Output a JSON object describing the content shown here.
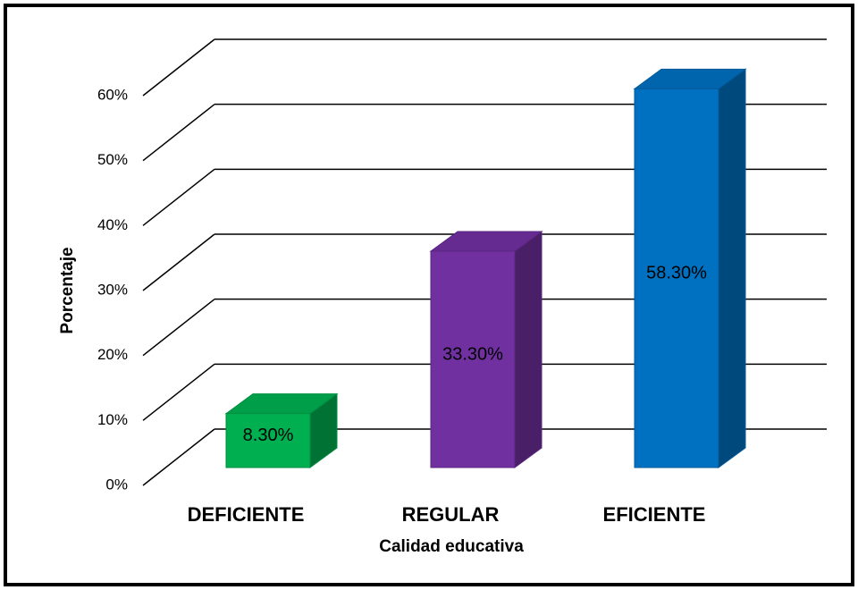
{
  "chart_data": {
    "type": "bar3d",
    "x_label": "Calidad educativa",
    "y_label": "Porcentaje",
    "categories": [
      "DEFICIENTE",
      "REGULAR",
      "EFICIENTE"
    ],
    "values": [
      8.3,
      33.3,
      58.3
    ],
    "value_labels": [
      "8.30%",
      "33.30%",
      "58.30%"
    ],
    "colors": [
      "#00b050",
      "#7030a0",
      "#0070c0"
    ],
    "ylim": [
      0,
      60
    ],
    "yticks": [
      {
        "value": 0,
        "label": "0%"
      },
      {
        "value": 10,
        "label": "10%"
      },
      {
        "value": 20,
        "label": "20%"
      },
      {
        "value": 30,
        "label": "30%"
      },
      {
        "value": 40,
        "label": "40%"
      },
      {
        "value": 50,
        "label": "50%"
      },
      {
        "value": 60,
        "label": "60%"
      }
    ],
    "grid": true
  }
}
